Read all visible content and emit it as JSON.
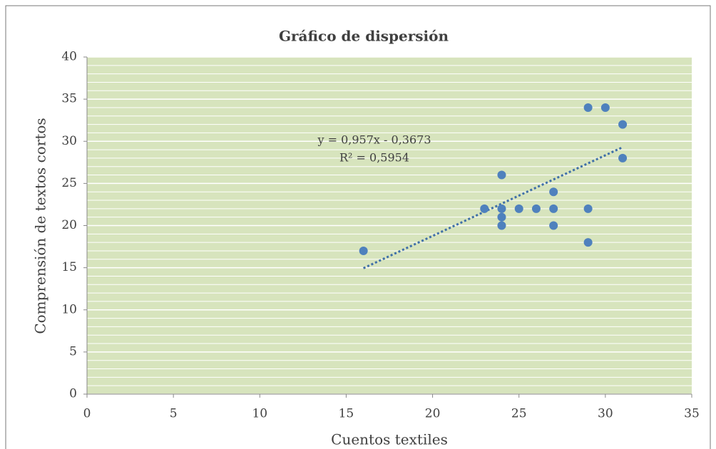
{
  "chart_data": {
    "type": "scatter",
    "title": "Gráfico de dispersión",
    "xlabel": "Cuentos textiles",
    "ylabel": "Comprensión de textos cortos",
    "series": [
      {
        "name": "Comprensión de textos cortos",
        "color": "#4f81bd",
        "x": [
          16,
          23,
          24,
          24,
          24,
          24,
          25,
          26,
          27,
          27,
          27,
          29,
          29,
          29,
          30,
          31,
          31
        ],
        "values": [
          17,
          22,
          26,
          22,
          21,
          20,
          22,
          22,
          24,
          22,
          20,
          34,
          22,
          18,
          34,
          32,
          28
        ]
      }
    ],
    "trendline": {
      "x": [
        16,
        31
      ],
      "values": [
        14.94,
        29.3
      ],
      "color": "#3f6fa8"
    },
    "annotations": [
      "y = 0,957x  - 0,3673",
      "R² = 0,5954"
    ],
    "xlim": [
      0,
      35
    ],
    "xticks": [
      0,
      5,
      10,
      15,
      20,
      25,
      30,
      35
    ],
    "ylim": [
      0,
      40
    ],
    "yticks": [
      0,
      5,
      10,
      15,
      20,
      25,
      30,
      35,
      40
    ],
    "grid": true,
    "minor_grid_step": 1,
    "plot_background": "#d7e4bd"
  }
}
